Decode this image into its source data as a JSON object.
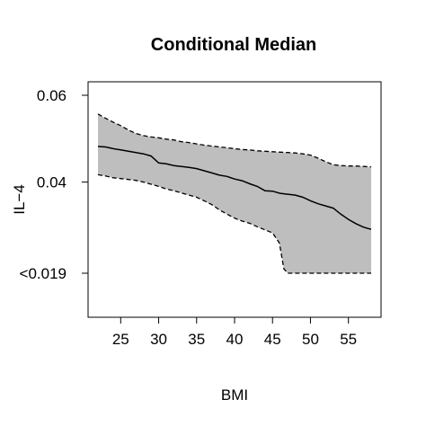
{
  "chart_data": {
    "type": "area",
    "title": "Conditional Median",
    "xlabel": "BMI",
    "ylabel": "IL−4",
    "xlim": [
      20.7,
      59.3
    ],
    "x_ticks": [
      {
        "value": 25,
        "label": "25"
      },
      {
        "value": 30,
        "label": "30"
      },
      {
        "value": 35,
        "label": "35"
      },
      {
        "value": 40,
        "label": "40"
      },
      {
        "value": 45,
        "label": "45"
      },
      {
        "value": 50,
        "label": "50"
      },
      {
        "value": 55,
        "label": "55"
      }
    ],
    "y_ticks": [
      {
        "value": 0.06,
        "label": "0.06"
      },
      {
        "value": 0.04,
        "label": "0.04"
      },
      {
        "value": 0.019,
        "label": "<0.019"
      }
    ],
    "grid": false,
    "legend": "none",
    "colors": {
      "band": "#bebebe",
      "line": "#000000"
    },
    "series": [
      {
        "role": "median",
        "style": "solid",
        "points": [
          [
            22,
            0.0482
          ],
          [
            23,
            0.0481
          ],
          [
            24,
            0.0477
          ],
          [
            25,
            0.0474
          ],
          [
            26,
            0.0471
          ],
          [
            27,
            0.0468
          ],
          [
            28,
            0.0465
          ],
          [
            29,
            0.046
          ],
          [
            30,
            0.0444
          ],
          [
            31,
            0.0442
          ],
          [
            32,
            0.0438
          ],
          [
            33,
            0.0436
          ],
          [
            34,
            0.0434
          ],
          [
            35,
            0.0431
          ],
          [
            36,
            0.0426
          ],
          [
            37,
            0.0421
          ],
          [
            38,
            0.0416
          ],
          [
            39,
            0.0413
          ],
          [
            40,
            0.0407
          ],
          [
            41,
            0.0403
          ],
          [
            42,
            0.0396
          ],
          [
            43,
            0.039
          ],
          [
            44,
            0.038
          ],
          [
            45,
            0.0379
          ],
          [
            46,
            0.0374
          ],
          [
            47,
            0.0372
          ],
          [
            48,
            0.037
          ],
          [
            49,
            0.0365
          ],
          [
            50,
            0.0357
          ],
          [
            51,
            0.035
          ],
          [
            52,
            0.0345
          ],
          [
            53,
            0.034
          ],
          [
            54,
            0.0326
          ],
          [
            55,
            0.0314
          ],
          [
            56,
            0.0304
          ],
          [
            57,
            0.0296
          ],
          [
            58,
            0.0291
          ]
        ]
      },
      {
        "role": "upper",
        "style": "dashed",
        "points": [
          [
            22,
            0.0557
          ],
          [
            23,
            0.0547
          ],
          [
            24,
            0.0538
          ],
          [
            25,
            0.053
          ],
          [
            26,
            0.052
          ],
          [
            27,
            0.0512
          ],
          [
            28,
            0.0507
          ],
          [
            29,
            0.0504
          ],
          [
            30,
            0.0502
          ],
          [
            31,
            0.0499
          ],
          [
            32,
            0.0497
          ],
          [
            33,
            0.0493
          ],
          [
            34,
            0.0491
          ],
          [
            35,
            0.0488
          ],
          [
            36,
            0.0485
          ],
          [
            37,
            0.0483
          ],
          [
            38,
            0.0481
          ],
          [
            39,
            0.0479
          ],
          [
            40,
            0.0477
          ],
          [
            41,
            0.0475
          ],
          [
            42,
            0.0474
          ],
          [
            43,
            0.0472
          ],
          [
            44,
            0.0471
          ],
          [
            45,
            0.047
          ],
          [
            46,
            0.0469
          ],
          [
            47,
            0.0468
          ],
          [
            48,
            0.0467
          ],
          [
            49,
            0.0465
          ],
          [
            50,
            0.0462
          ],
          [
            51,
            0.0455
          ],
          [
            52,
            0.0447
          ],
          [
            53,
            0.044
          ],
          [
            54,
            0.0438
          ],
          [
            55,
            0.0437
          ],
          [
            56,
            0.0437
          ],
          [
            57,
            0.0436
          ],
          [
            58,
            0.0435
          ]
        ]
      },
      {
        "role": "lower",
        "style": "dashed",
        "points": [
          [
            22,
            0.0417
          ],
          [
            23,
            0.0414
          ],
          [
            24,
            0.041
          ],
          [
            25,
            0.0408
          ],
          [
            26,
            0.0406
          ],
          [
            27,
            0.0404
          ],
          [
            28,
            0.04
          ],
          [
            29,
            0.0395
          ],
          [
            30,
            0.039
          ],
          [
            31,
            0.0384
          ],
          [
            32,
            0.038
          ],
          [
            33,
            0.0375
          ],
          [
            34,
            0.037
          ],
          [
            35,
            0.0365
          ],
          [
            36,
            0.0357
          ],
          [
            37,
            0.0348
          ],
          [
            38,
            0.0336
          ],
          [
            39,
            0.0326
          ],
          [
            40,
            0.0317
          ],
          [
            41,
            0.031
          ],
          [
            42,
            0.0305
          ],
          [
            43,
            0.0297
          ],
          [
            44,
            0.029
          ],
          [
            45,
            0.0283
          ],
          [
            45.9,
            0.026
          ],
          [
            46.5,
            0.02
          ],
          [
            47,
            0.019
          ],
          [
            48,
            0.019
          ],
          [
            50,
            0.019
          ],
          [
            52,
            0.019
          ],
          [
            54,
            0.019
          ],
          [
            56,
            0.019
          ],
          [
            58,
            0.019
          ]
        ]
      }
    ]
  }
}
